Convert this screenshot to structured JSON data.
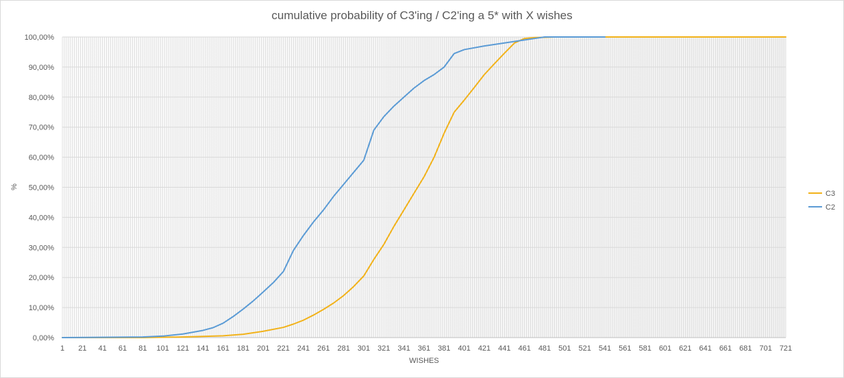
{
  "chart_data": {
    "type": "line",
    "title": "cumulative probability of C3'ing / C2'ing a 5* with X wishes",
    "xlabel": "WISHES",
    "ylabel": "%",
    "xlim": [
      1,
      721
    ],
    "ylim": [
      0,
      1
    ],
    "x_tick_labels": [
      "1",
      "21",
      "41",
      "61",
      "81",
      "101",
      "121",
      "141",
      "161",
      "181",
      "201",
      "221",
      "241",
      "261",
      "281",
      "301",
      "321",
      "341",
      "361",
      "381",
      "401",
      "421",
      "441",
      "461",
      "481",
      "501",
      "521",
      "541",
      "561",
      "581",
      "601",
      "621",
      "641",
      "661",
      "681",
      "701",
      "721"
    ],
    "y_tick_labels": [
      "0,00%",
      "10,00%",
      "20,00%",
      "30,00%",
      "40,00%",
      "50,00%",
      "60,00%",
      "70,00%",
      "80,00%",
      "90,00%",
      "100,00%"
    ],
    "grid": true,
    "vertical_gridlines": true,
    "legend_position": "right",
    "series": [
      {
        "name": "C3",
        "color": "#F2B21A",
        "x": [
          1,
          81,
          101,
          121,
          141,
          161,
          181,
          201,
          221,
          231,
          241,
          251,
          261,
          271,
          281,
          291,
          301,
          311,
          321,
          331,
          341,
          351,
          361,
          371,
          381,
          391,
          401,
          411,
          421,
          431,
          441,
          451,
          461,
          471,
          481,
          491,
          501,
          511,
          521,
          531,
          541,
          551,
          561,
          571,
          581,
          591,
          601,
          611,
          621,
          641,
          661,
          681,
          701,
          721
        ],
        "y": [
          0,
          0,
          0.001,
          0.002,
          0.004,
          0.006,
          0.011,
          0.021,
          0.034,
          0.045,
          0.058,
          0.075,
          0.094,
          0.115,
          0.14,
          0.17,
          0.205,
          0.26,
          0.31,
          0.37,
          0.425,
          0.48,
          0.535,
          0.6,
          0.68,
          0.75,
          0.79,
          0.832,
          0.875,
          0.911,
          0.946,
          0.98,
          0.995,
          0.998,
          0.999,
          1,
          1,
          1,
          1,
          1,
          1,
          1,
          1,
          1,
          1,
          1,
          1,
          1,
          1,
          1,
          1,
          1,
          1,
          1
        ],
        "raw_y": [
          0,
          0,
          0.001,
          0.002,
          0.004,
          0.006,
          0.011,
          0.021,
          0.034,
          0.045,
          0.058,
          0.075,
          0.094,
          0.115,
          0.14,
          0.17,
          0.205,
          0.26,
          0.31,
          0.37,
          0.425,
          0.48,
          0.535,
          0.6,
          0.68,
          0.75,
          0.79,
          0.832,
          0.875,
          0.911,
          0.946,
          0.98,
          0.995,
          0.998,
          0.999,
          1,
          1,
          1,
          1,
          1,
          1,
          1,
          1,
          1,
          1,
          1,
          1,
          1,
          1,
          1,
          1,
          1,
          1,
          1
        ],
        "points": [
          [
            1,
            0
          ],
          [
            81,
            0
          ],
          [
            101,
            0.001
          ],
          [
            121,
            0.002
          ],
          [
            141,
            0.004
          ],
          [
            161,
            0.006
          ],
          [
            181,
            0.011
          ],
          [
            201,
            0.021
          ],
          [
            221,
            0.034
          ],
          [
            231,
            0.045
          ],
          [
            241,
            0.058
          ],
          [
            251,
            0.075
          ],
          [
            261,
            0.094
          ],
          [
            271,
            0.115
          ],
          [
            281,
            0.14
          ],
          [
            291,
            0.17
          ],
          [
            301,
            0.205
          ],
          [
            311,
            0.26
          ],
          [
            321,
            0.31
          ],
          [
            331,
            0.37
          ],
          [
            341,
            0.425
          ],
          [
            351,
            0.48
          ],
          [
            361,
            0.535
          ],
          [
            371,
            0.6
          ],
          [
            381,
            0.68
          ],
          [
            391,
            0.75
          ],
          [
            401,
            0.79
          ],
          [
            411,
            0.832
          ],
          [
            421,
            0.875
          ],
          [
            431,
            0.911
          ],
          [
            441,
            0.946
          ],
          [
            451,
            0.98
          ],
          [
            461,
            0.995
          ],
          [
            471,
            0.998
          ],
          [
            481,
            0.999
          ],
          [
            491,
            1
          ],
          [
            501,
            1
          ],
          [
            511,
            1
          ],
          [
            521,
            1
          ],
          [
            531,
            1
          ],
          [
            541,
            1
          ],
          [
            551,
            1
          ],
          [
            561,
            1
          ],
          [
            571,
            1
          ],
          [
            581,
            1
          ],
          [
            591,
            1
          ],
          [
            601,
            1
          ],
          [
            611,
            1
          ],
          [
            621,
            1
          ],
          [
            641,
            1
          ],
          [
            661,
            1
          ],
          [
            681,
            1
          ],
          [
            701,
            1
          ],
          [
            721,
            1
          ]
        ]
      },
      {
        "name": "C2",
        "color": "#5B9BD5",
        "points": [
          [
            1,
            0
          ],
          [
            81,
            0.002
          ],
          [
            101,
            0.005
          ],
          [
            121,
            0.012
          ],
          [
            141,
            0.024
          ],
          [
            151,
            0.033
          ],
          [
            161,
            0.048
          ],
          [
            171,
            0.07
          ],
          [
            181,
            0.095
          ],
          [
            191,
            0.122
          ],
          [
            201,
            0.152
          ],
          [
            211,
            0.183
          ],
          [
            221,
            0.22
          ],
          [
            231,
            0.29
          ],
          [
            241,
            0.34
          ],
          [
            251,
            0.385
          ],
          [
            261,
            0.425
          ],
          [
            271,
            0.47
          ],
          [
            281,
            0.51
          ],
          [
            291,
            0.55
          ],
          [
            301,
            0.59
          ],
          [
            311,
            0.69
          ],
          [
            321,
            0.735
          ],
          [
            331,
            0.77
          ],
          [
            341,
            0.8
          ],
          [
            351,
            0.83
          ],
          [
            361,
            0.855
          ],
          [
            371,
            0.875
          ],
          [
            381,
            0.9
          ],
          [
            391,
            0.945
          ],
          [
            401,
            0.958
          ],
          [
            421,
            0.97
          ],
          [
            441,
            0.98
          ],
          [
            461,
            0.99
          ],
          [
            471,
            0.995
          ],
          [
            481,
            1
          ],
          [
            501,
            1
          ],
          [
            521,
            1
          ],
          [
            541,
            1
          ]
        ]
      }
    ]
  }
}
